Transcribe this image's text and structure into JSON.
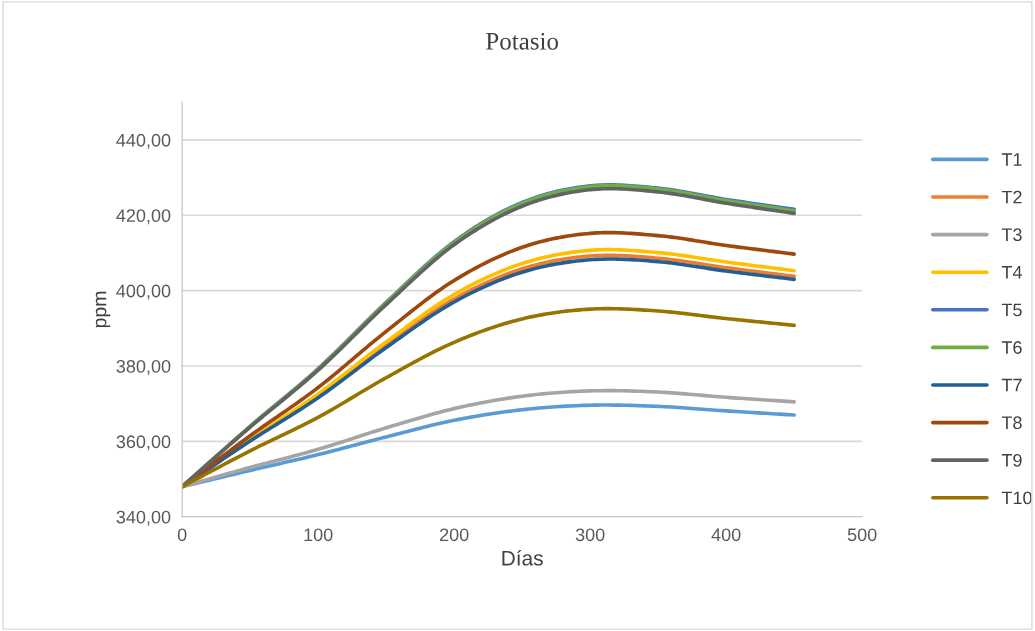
{
  "chart_data": {
    "type": "line",
    "title": "Potasio",
    "xlabel": "Días",
    "ylabel": "ppm",
    "x": [
      0,
      50,
      100,
      150,
      200,
      250,
      300,
      350,
      400,
      450
    ],
    "xlim": [
      0,
      500
    ],
    "xticks": [
      0,
      100,
      200,
      300,
      400,
      500
    ],
    "ylim": [
      340,
      450
    ],
    "yticks": [
      {
        "value": 340,
        "label": "340,00"
      },
      {
        "value": 360,
        "label": "360,00"
      },
      {
        "value": 380,
        "label": "380,00"
      },
      {
        "value": 400,
        "label": "400,00"
      },
      {
        "value": 420,
        "label": "420,00"
      },
      {
        "value": 440,
        "label": "440,00"
      }
    ],
    "grid": "y",
    "legend": "right",
    "marker": "none",
    "line_style": "solid",
    "series": [
      {
        "name": "T1",
        "color": "#5b9bd5",
        "values": [
          348,
          352.3,
          356.5,
          361.2,
          365.6,
          368.4,
          369.6,
          369.3,
          368.1,
          367.0
        ]
      },
      {
        "name": "T2",
        "color": "#ed7d31",
        "values": [
          348,
          360.3,
          372.0,
          385.5,
          397.8,
          405.8,
          409.2,
          408.6,
          406.1,
          403.8
        ]
      },
      {
        "name": "T3",
        "color": "#a5a5a5",
        "values": [
          348,
          353.1,
          357.9,
          363.6,
          368.7,
          372.0,
          373.4,
          373.1,
          371.7,
          370.5
        ]
      },
      {
        "name": "T4",
        "color": "#ffc000",
        "values": [
          348,
          360.6,
          372.6,
          386.4,
          399.0,
          407.2,
          410.7,
          410.1,
          407.6,
          405.3
        ]
      },
      {
        "name": "T5",
        "color": "#4472c4",
        "values": [
          348,
          364.0,
          379.3,
          396.9,
          413.0,
          423.4,
          427.8,
          427.2,
          424.2,
          421.6
        ]
      },
      {
        "name": "T6",
        "color": "#70ad47",
        "values": [
          348,
          364.0,
          379.2,
          396.8,
          412.8,
          423.2,
          427.6,
          427.0,
          423.9,
          421.2
        ]
      },
      {
        "name": "T7",
        "color": "#255e91",
        "values": [
          348,
          360.1,
          371.6,
          384.9,
          397.0,
          404.9,
          408.2,
          407.7,
          405.2,
          403.0
        ]
      },
      {
        "name": "T8",
        "color": "#9e480e",
        "values": [
          348,
          361.5,
          374.3,
          389.2,
          402.7,
          411.5,
          415.2,
          414.6,
          412.0,
          409.7
        ]
      },
      {
        "name": "T9",
        "color": "#636363",
        "values": [
          348,
          363.8,
          378.9,
          396.3,
          412.2,
          422.4,
          426.8,
          426.2,
          423.2,
          420.5
        ]
      },
      {
        "name": "T10",
        "color": "#997300",
        "values": [
          348,
          357.5,
          366.4,
          376.9,
          386.3,
          392.5,
          395.1,
          394.6,
          392.6,
          390.8
        ]
      }
    ]
  }
}
